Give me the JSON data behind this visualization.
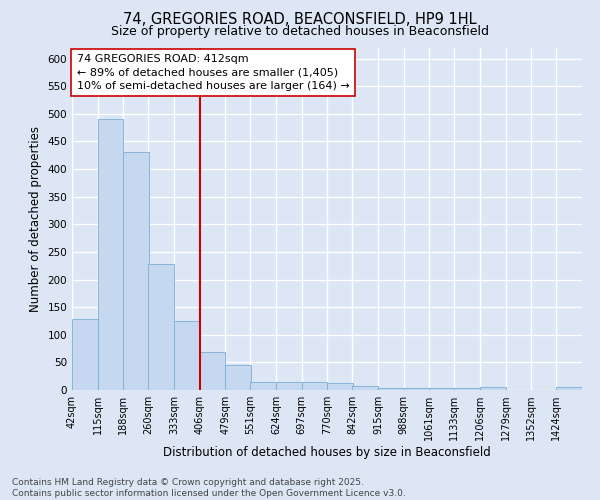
{
  "title_line1": "74, GREGORIES ROAD, BEACONSFIELD, HP9 1HL",
  "title_line2": "Size of property relative to detached houses in Beaconsfield",
  "xlabel": "Distribution of detached houses by size in Beaconsfield",
  "ylabel": "Number of detached properties",
  "bar_color": "#c5d8f0",
  "bar_edge_color": "#7aafd4",
  "vline_color": "#cc0000",
  "vline_x": 406,
  "annotation_text": "74 GREGORIES ROAD: 412sqm\n← 89% of detached houses are smaller (1,405)\n10% of semi-detached houses are larger (164) →",
  "annotation_box_color": "#ffffff",
  "annotation_box_edge": "#cc0000",
  "background_color": "#dce6f5",
  "grid_color": "#ffffff",
  "bins": [
    42,
    115,
    188,
    260,
    333,
    406,
    479,
    551,
    624,
    697,
    770,
    842,
    915,
    988,
    1061,
    1133,
    1206,
    1279,
    1352,
    1424,
    1497
  ],
  "counts": [
    128,
    490,
    430,
    228,
    125,
    68,
    45,
    15,
    15,
    15,
    12,
    7,
    3,
    3,
    3,
    3,
    6,
    0,
    0,
    5
  ],
  "ylim": [
    0,
    620
  ],
  "yticks": [
    0,
    50,
    100,
    150,
    200,
    250,
    300,
    350,
    400,
    450,
    500,
    550,
    600
  ],
  "footer_text": "Contains HM Land Registry data © Crown copyright and database right 2025.\nContains public sector information licensed under the Open Government Licence v3.0.",
  "title_fontsize": 10.5,
  "subtitle_fontsize": 9,
  "axis_label_fontsize": 8.5,
  "tick_fontsize": 7.5,
  "annotation_fontsize": 8,
  "footer_fontsize": 6.5
}
